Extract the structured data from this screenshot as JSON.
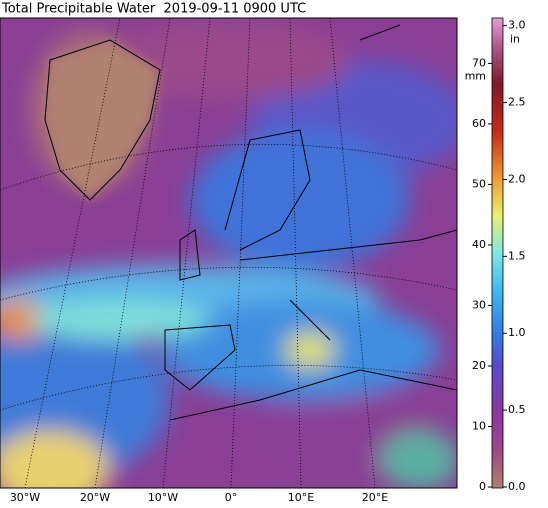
{
  "title": "Total Precipitable Water  2019-09-11 0900 UTC",
  "map": {
    "lon_labels": [
      "30°W",
      "20°W",
      "10°W",
      "0°",
      "10°E",
      "20°E"
    ]
  },
  "colorbar": {
    "mm_units": "mm",
    "in_units": "in",
    "mm_lim": [
      0,
      77.5
    ],
    "mm_ticks": [
      0,
      10,
      20,
      30,
      40,
      50,
      60,
      70
    ],
    "in_lim": [
      0,
      3.05
    ],
    "in_ticks": [
      {
        "value": 0,
        "label": "0.0"
      },
      0.5,
      {
        "value": 1,
        "label": "1.0"
      },
      1.5,
      {
        "value": 2,
        "label": "2.0"
      },
      2.5,
      {
        "value": 3,
        "label": "3.0"
      }
    ]
  }
}
